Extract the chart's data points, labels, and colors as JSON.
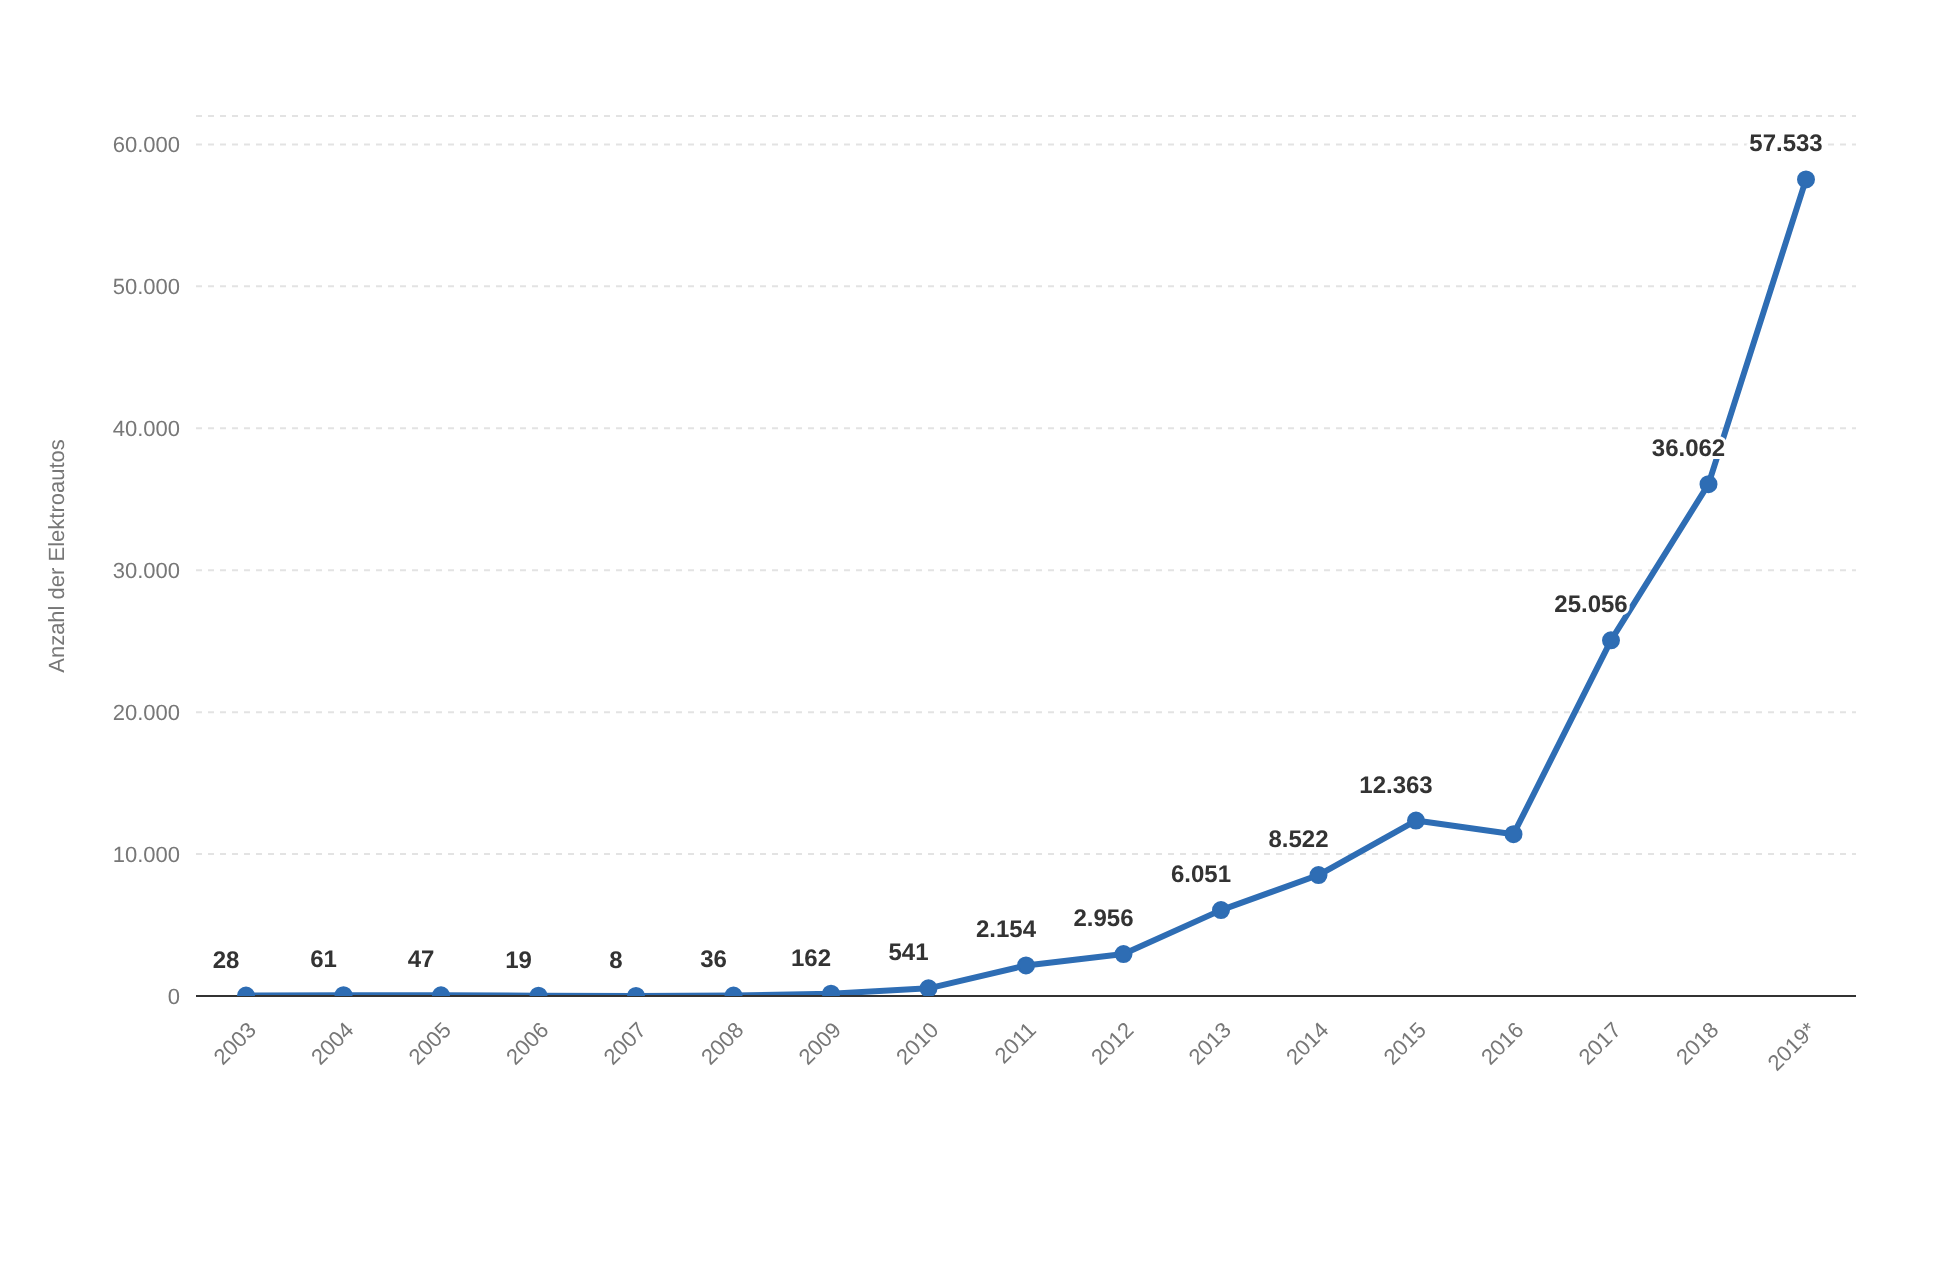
{
  "chart_data": {
    "type": "line",
    "ylabel": "Anzahl der Elektroautos",
    "categories": [
      "2003",
      "2004",
      "2005",
      "2006",
      "2007",
      "2008",
      "2009",
      "2010",
      "2011",
      "2012",
      "2013",
      "2014",
      "2015",
      "2016",
      "2017",
      "2018",
      "2019*"
    ],
    "series": [
      {
        "color": "#2e6db4",
        "values": [
          28,
          61,
          47,
          19,
          8,
          36,
          162,
          541,
          2154,
          2956,
          6051,
          8522,
          12363,
          11400,
          25056,
          36062,
          57533
        ],
        "value_labels": [
          "28",
          "61",
          "47",
          "19",
          "8",
          "36",
          "162",
          "541",
          "2.154",
          "2.956",
          "6.051",
          "8.522",
          "12.363",
          null,
          "25.056",
          "36.062",
          "57.533"
        ]
      }
    ],
    "ylim": [
      0,
      62000
    ],
    "yticks": [
      {
        "value": 0,
        "label": "0"
      },
      {
        "value": 10000,
        "label": "10.000"
      },
      {
        "value": 20000,
        "label": "20.000"
      },
      {
        "value": 30000,
        "label": "30.000"
      },
      {
        "value": 40000,
        "label": "40.000"
      },
      {
        "value": 50000,
        "label": "50.000"
      },
      {
        "value": 60000,
        "label": "60.000"
      }
    ],
    "grid": "y",
    "marker": "circle",
    "line_style": "solid"
  }
}
